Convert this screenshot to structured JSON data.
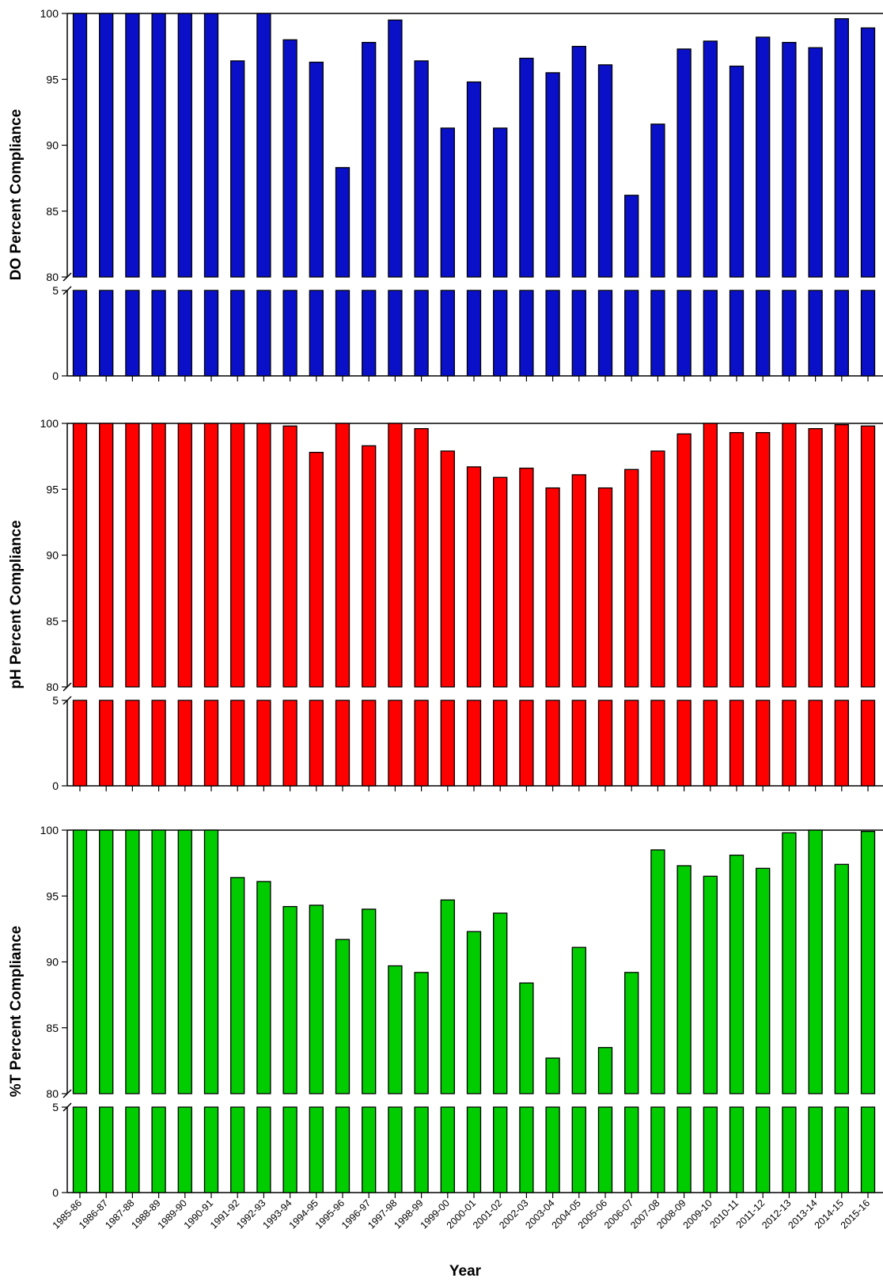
{
  "chart_data": {
    "type": "bar",
    "layout": "three stacked panels with broken y-axis (0-5 and 80-100), shared x-axis",
    "categories": [
      "1985-86",
      "1986-87",
      "1987-88",
      "1988-89",
      "1989-90",
      "1990-91",
      "1991-92",
      "1992-93",
      "1993-94",
      "1994-95",
      "1995-96",
      "1996-97",
      "1997-98",
      "1998-99",
      "1999-00",
      "2000-01",
      "2001-02",
      "2002-03",
      "2003-04",
      "2004-05",
      "2005-06",
      "2006-07",
      "2007-08",
      "2008-09",
      "2009-10",
      "2010-11",
      "2011-12",
      "2012-13",
      "2013-14",
      "2014-15",
      "2015-16"
    ],
    "xlabel": "Year",
    "grid": false,
    "panels": [
      {
        "ylabel": "DO Percent Compliance",
        "color": "#0a10c8",
        "ylim_lower": [
          0,
          5
        ],
        "ylim_upper": [
          80,
          100
        ],
        "yticks_lower": [
          "0",
          "5"
        ],
        "yticks_upper": [
          "80",
          "85",
          "90",
          "95",
          "100"
        ],
        "values": [
          100,
          100,
          100,
          100,
          100,
          100,
          96.4,
          100,
          98.0,
          96.3,
          88.3,
          97.8,
          99.5,
          96.4,
          91.3,
          94.8,
          91.3,
          96.6,
          95.5,
          97.5,
          96.1,
          86.2,
          91.6,
          97.3,
          97.9,
          96.0,
          98.2,
          97.8,
          97.4,
          99.6,
          98.9
        ]
      },
      {
        "ylabel": "pH Percent Compliance",
        "color": "#ff0000",
        "ylim_lower": [
          0,
          5
        ],
        "ylim_upper": [
          80,
          100
        ],
        "yticks_lower": [
          "0",
          "5"
        ],
        "yticks_upper": [
          "80",
          "85",
          "90",
          "95",
          "100"
        ],
        "values": [
          100,
          100,
          100,
          100,
          100,
          100,
          100,
          100,
          99.8,
          97.8,
          100,
          98.3,
          100,
          99.6,
          97.9,
          96.7,
          95.9,
          96.6,
          95.1,
          96.1,
          95.1,
          96.5,
          97.9,
          99.2,
          100,
          99.3,
          99.3,
          100,
          99.6,
          99.9,
          99.8
        ]
      },
      {
        "ylabel": "%T Percent Compliance",
        "color": "#00cc00",
        "ylim_lower": [
          0,
          5
        ],
        "ylim_upper": [
          80,
          100
        ],
        "yticks_lower": [
          "0",
          "5"
        ],
        "yticks_upper": [
          "80",
          "85",
          "90",
          "95",
          "100"
        ],
        "values": [
          100,
          100,
          100,
          100,
          100,
          100,
          96.4,
          96.1,
          94.2,
          94.3,
          91.7,
          94.0,
          89.7,
          89.2,
          94.7,
          92.3,
          93.7,
          88.4,
          82.7,
          91.1,
          83.5,
          89.2,
          98.5,
          97.3,
          96.5,
          98.1,
          97.1,
          99.8,
          100,
          97.4,
          99.9
        ]
      }
    ]
  }
}
